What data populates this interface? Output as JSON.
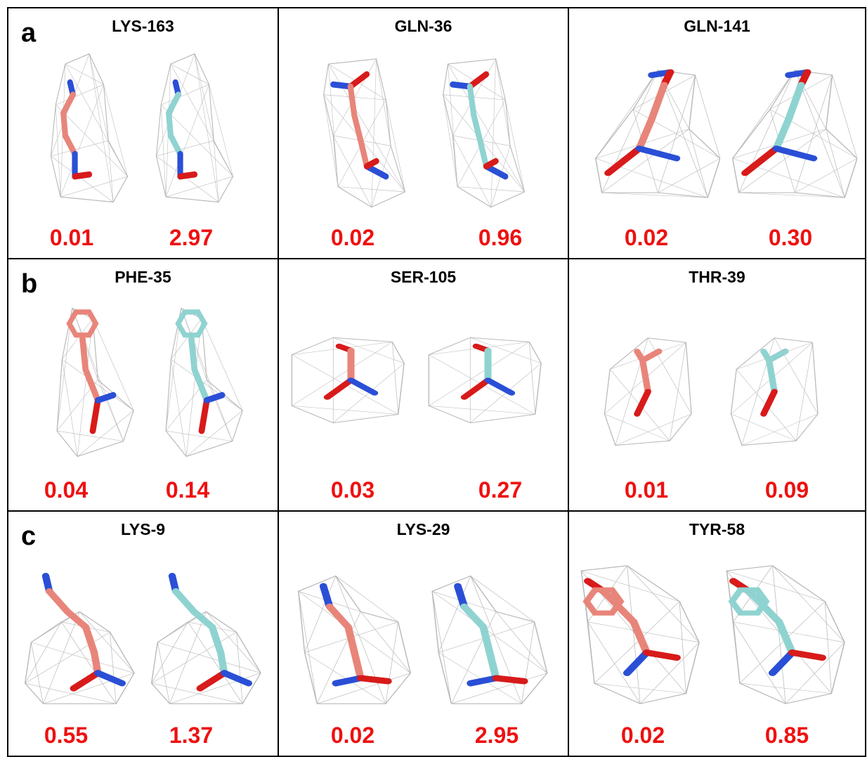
{
  "colors": {
    "left_model": "#e8857a",
    "right_model": "#8fd3d1",
    "score": "#ee1111",
    "mesh": "#b8b8b8",
    "nitrogen": "#2a4fd6",
    "oxygen": "#d81a1a"
  },
  "rows": [
    {
      "letter": "a",
      "panels": [
        {
          "title": "LYS-163",
          "scores": [
            "0.01",
            "2.97"
          ],
          "icons": [
            "lysine-model-icon",
            "lysine-model-icon"
          ]
        },
        {
          "title": "GLN-36",
          "scores": [
            "0.02",
            "0.96"
          ],
          "icons": [
            "glutamine-model-icon",
            "glutamine-model-icon"
          ]
        },
        {
          "title": "GLN-141",
          "scores": [
            "0.02",
            "0.30"
          ],
          "icons": [
            "glutamine-model-icon",
            "glutamine-model-icon"
          ]
        }
      ]
    },
    {
      "letter": "b",
      "panels": [
        {
          "title": "PHE-35",
          "scores": [
            "0.04",
            "0.14"
          ],
          "icons": [
            "phenylalanine-model-icon",
            "phenylalanine-model-icon"
          ]
        },
        {
          "title": "SER-105",
          "scores": [
            "0.03",
            "0.27"
          ],
          "icons": [
            "serine-model-icon",
            "serine-model-icon"
          ]
        },
        {
          "title": "THR-39",
          "scores": [
            "0.01",
            "0.09"
          ],
          "icons": [
            "threonine-model-icon",
            "threonine-model-icon"
          ]
        }
      ]
    },
    {
      "letter": "c",
      "panels": [
        {
          "title": "LYS-9",
          "scores": [
            "0.55",
            "1.37"
          ],
          "icons": [
            "lysine-model-icon",
            "lysine-model-icon"
          ]
        },
        {
          "title": "LYS-29",
          "scores": [
            "0.02",
            "2.95"
          ],
          "icons": [
            "lysine-model-icon",
            "lysine-model-icon"
          ]
        },
        {
          "title": "TYR-58",
          "scores": [
            "0.02",
            "0.85"
          ],
          "icons": [
            "tyrosine-model-icon",
            "tyrosine-model-icon"
          ]
        }
      ]
    }
  ]
}
